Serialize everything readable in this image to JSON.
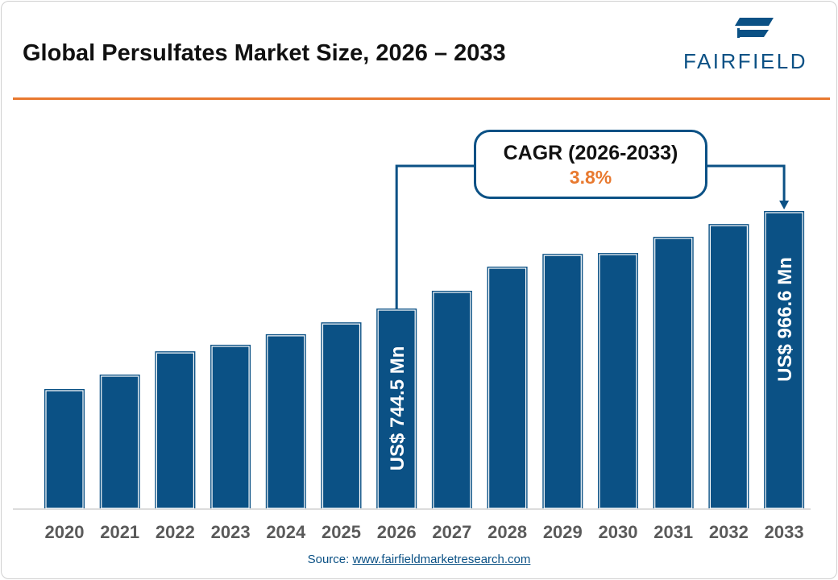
{
  "title": "Global Persulfates Market Size, 2026 – 2033",
  "logo": {
    "text": "FAIRFIELD",
    "color": "#0b5185"
  },
  "cagr": {
    "label": "CAGR (2026-2033)",
    "value": "3.8%"
  },
  "source": {
    "prefix": "Source: ",
    "link": "www.fairfieldmarketresearch.com"
  },
  "colors": {
    "bar": "#0b5185",
    "accent": "#e8792f",
    "axis_text": "#5a5a5a"
  },
  "chart_data": {
    "type": "bar",
    "title": "Global Persulfates Market Size, 2026 – 2033",
    "xlabel": "",
    "ylabel": "",
    "grid": false,
    "categories": [
      "2020",
      "2021",
      "2022",
      "2023",
      "2024",
      "2025",
      "2026",
      "2027",
      "2028",
      "2029",
      "2030",
      "2031",
      "2032",
      "2033"
    ],
    "values": [
      561,
      594,
      647,
      662,
      686,
      713,
      744.5,
      785,
      840,
      869,
      871,
      908,
      937,
      966.6
    ],
    "data_labels": {
      "2026": "US$ 744.5 Mn",
      "2033": "US$ 966.6 Mn"
    }
  }
}
